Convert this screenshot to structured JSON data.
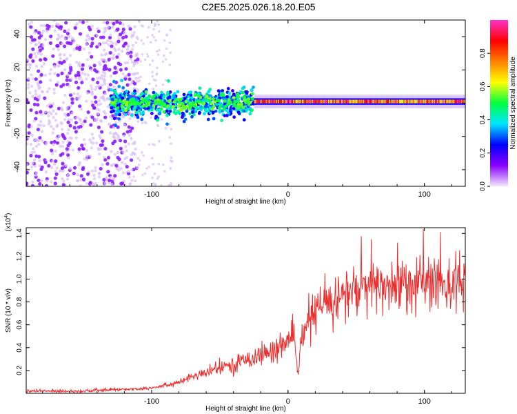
{
  "title": "C2E5.2025.026.18.20.E05",
  "chart_data": [
    {
      "type": "heatmap",
      "xlabel": "Height of straight line (km)",
      "ylabel": "Frequency (Hz)",
      "xlim": [
        -192,
        130
      ],
      "ylim": [
        -50,
        50
      ],
      "xticks": [
        -100,
        0,
        100
      ],
      "yticks": [
        -40,
        -20,
        0,
        20,
        40
      ],
      "grid": false,
      "colorbar": {
        "label": "Normalized spectral amplitude",
        "range": [
          0.0,
          1.0
        ],
        "ticks": [
          "0.0",
          "0.2",
          "0.4",
          "0.6",
          "0.8"
        ],
        "tick_values": [
          0.0,
          0.2,
          0.4,
          0.6,
          0.8
        ]
      },
      "colormap": [
        "#f4e8ff",
        "#8a00ff",
        "#0000ff",
        "#00e5ff",
        "#00ff40",
        "#ffff00",
        "#ff8000",
        "#ff0000",
        "#ff33cc"
      ],
      "regions": [
        {
          "x_range": [
            -192,
            -130
          ],
          "frequency_range": [
            -50,
            50
          ],
          "amplitude_range": [
            0.0,
            0.15
          ],
          "description_value": "broadband noise"
        },
        {
          "x_range": [
            -130,
            -25
          ],
          "frequency_center": 0,
          "frequency_halfwidth": 8,
          "amplitude_range": [
            0.2,
            0.45
          ]
        },
        {
          "x_range": [
            -25,
            130
          ],
          "frequency_center": 1,
          "frequency_halfwidth": 3,
          "amplitude_range": [
            0.6,
            1.0
          ]
        }
      ]
    },
    {
      "type": "line",
      "xlabel": "Height of straight line (km)",
      "ylabel": "SNR (10 * v/v)",
      "y_multiplier": "(x10",
      "y_multiplier_exp": "4",
      "y_multiplier_close": ")",
      "xlim": [
        -192,
        130
      ],
      "ylim": [
        0,
        1.45
      ],
      "xticks": [
        -100,
        0,
        100
      ],
      "yticks": [
        0.2,
        0.4,
        0.6,
        0.8,
        1.0,
        1.2,
        1.4
      ],
      "ytick_labels": [
        "0.2",
        "0.4",
        "0.6",
        "0.8",
        "1.0",
        "1.2",
        "1.4"
      ],
      "grid": false,
      "series": [
        {
          "color": "#ee2b2b",
          "x": [
            -192,
            -150,
            -130,
            -110,
            -100,
            -90,
            -80,
            -70,
            -60,
            -50,
            -40,
            -30,
            -20,
            -15,
            -10,
            -5,
            0,
            5,
            7,
            10,
            15,
            20,
            30,
            40,
            50,
            60,
            70,
            80,
            90,
            100,
            110,
            120,
            130
          ],
          "y": [
            0.02,
            0.02,
            0.03,
            0.04,
            0.05,
            0.07,
            0.1,
            0.14,
            0.18,
            0.22,
            0.25,
            0.3,
            0.33,
            0.35,
            0.38,
            0.42,
            0.46,
            0.45,
            0.15,
            0.48,
            0.62,
            0.72,
            0.8,
            0.86,
            0.9,
            0.92,
            0.94,
            0.95,
            0.96,
            0.96,
            0.97,
            0.98,
            0.98
          ]
        }
      ]
    }
  ]
}
